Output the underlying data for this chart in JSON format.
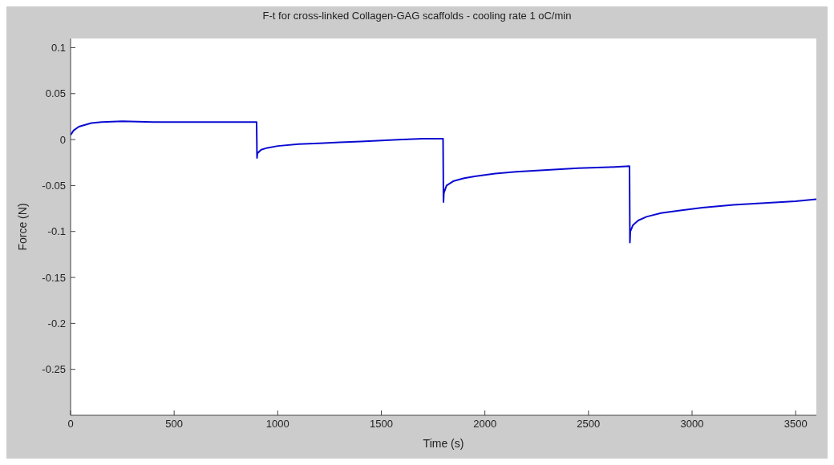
{
  "chart_data": {
    "type": "line",
    "title": "F-t for cross-linked Collagen-GAG scaffolds - cooling rate 1 oC/min",
    "xlabel": "Time (s)",
    "ylabel": "Force (N)",
    "xlim": [
      0,
      3600
    ],
    "xticks": [
      0,
      500,
      1000,
      1500,
      2000,
      2500,
      3000,
      3500
    ],
    "ylim": [
      -0.3,
      0.11
    ],
    "yticks": [
      -0.25,
      -0.2,
      -0.15,
      -0.1,
      -0.05,
      0,
      0.05,
      0.1
    ],
    "marker": "none",
    "line_style": "solid",
    "series": [
      {
        "color": "#0a0ad2",
        "x": [
          0,
          15,
          40,
          70,
          100,
          150,
          250,
          400,
          600,
          800,
          898,
          900,
          902,
          920,
          950,
          1000,
          1100,
          1200,
          1300,
          1400,
          1500,
          1600,
          1700,
          1798,
          1800,
          1802,
          1815,
          1850,
          1900,
          1950,
          2050,
          2150,
          2300,
          2450,
          2600,
          2698,
          2700,
          2702,
          2715,
          2740,
          2780,
          2850,
          2950,
          3050,
          3200,
          3350,
          3500,
          3600
        ],
        "values": [
          0.005,
          0.01,
          0.014,
          0.016,
          0.018,
          0.019,
          0.02,
          0.019,
          0.019,
          0.019,
          0.019,
          -0.02,
          -0.015,
          -0.011,
          -0.009,
          -0.007,
          -0.005,
          -0.004,
          -0.003,
          -0.002,
          -0.001,
          0,
          0.001,
          0.001,
          -0.068,
          -0.058,
          -0.05,
          -0.045,
          -0.042,
          -0.04,
          -0.037,
          -0.035,
          -0.033,
          -0.031,
          -0.03,
          -0.029,
          -0.112,
          -0.1,
          -0.093,
          -0.088,
          -0.084,
          -0.08,
          -0.077,
          -0.074,
          -0.071,
          -0.069,
          -0.067,
          -0.065
        ]
      }
    ]
  }
}
